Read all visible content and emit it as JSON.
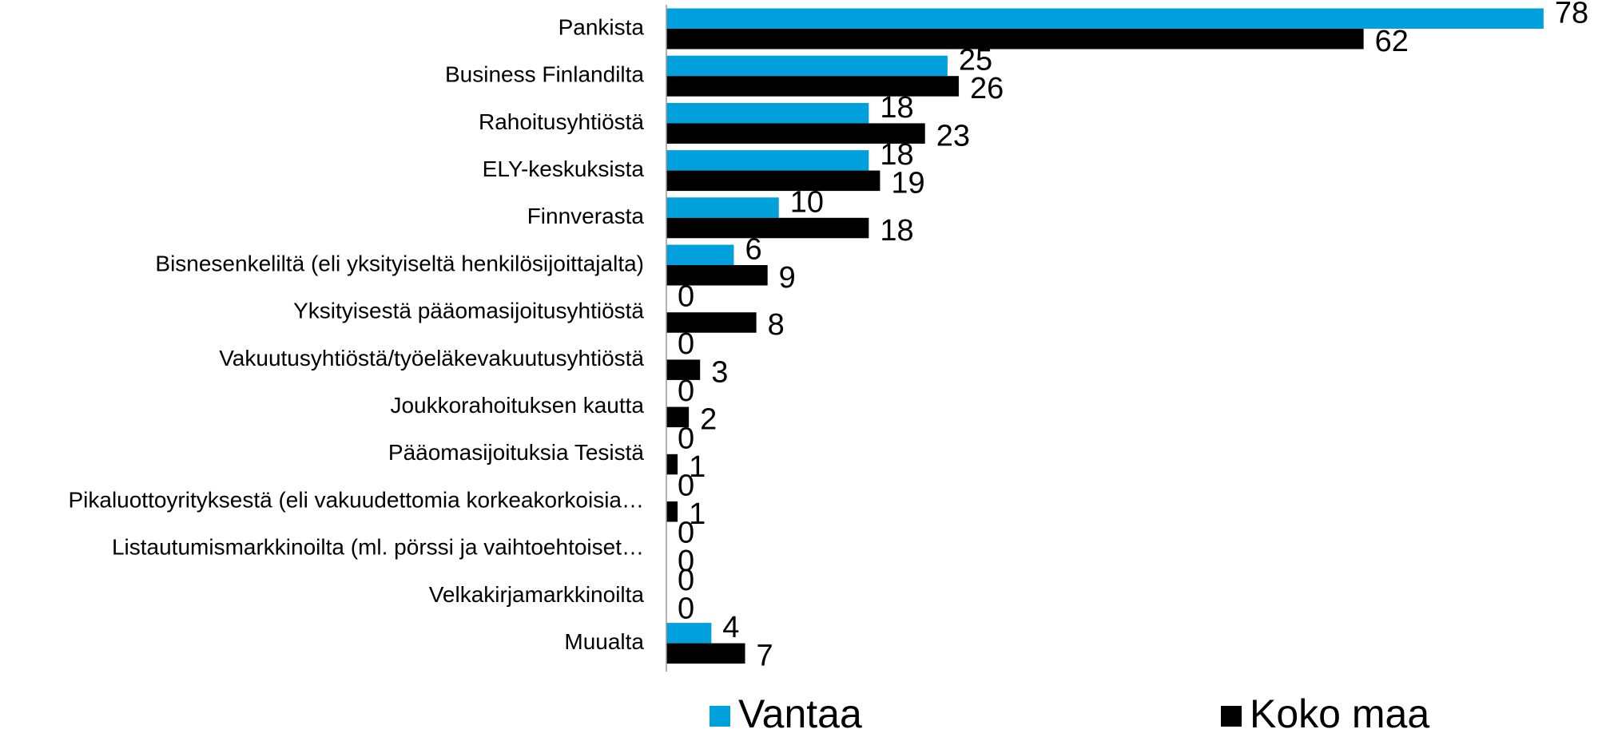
{
  "chart_data": {
    "type": "bar",
    "orientation": "horizontal",
    "categories": [
      "Pankista",
      "Business Finlandilta",
      "Rahoitusyhtiöstä",
      "ELY-keskuksista",
      "Finnverasta",
      "Bisnesenkeliltä (eli yksityiseltä henkilösijoittajalta)",
      "Yksityisestä pääomasijoitusyhtiöstä",
      "Vakuutusyhtiöstä/työeläkevakuutusyhtiöstä",
      "Joukkorahoituksen kautta",
      "Pääomasijoituksia Tesistä",
      "Pikaluottoyrityksestä (eli vakuudettomia korkeakorkoisia…",
      "Listautumismarkkinoilta (ml. pörssi ja vaihtoehtoiset…",
      "Velkakirjamarkkinoilta",
      "Muualta"
    ],
    "series": [
      {
        "name": "Vantaa",
        "color": "#00a0dc",
        "values": [
          78,
          25,
          18,
          18,
          10,
          6,
          0,
          0,
          0,
          0,
          0,
          0,
          0,
          4
        ]
      },
      {
        "name": "Koko maa",
        "color": "#000000",
        "values": [
          62,
          26,
          23,
          19,
          18,
          9,
          8,
          3,
          2,
          1,
          1,
          0,
          0,
          7
        ]
      }
    ],
    "xlim": [
      0,
      80
    ]
  }
}
